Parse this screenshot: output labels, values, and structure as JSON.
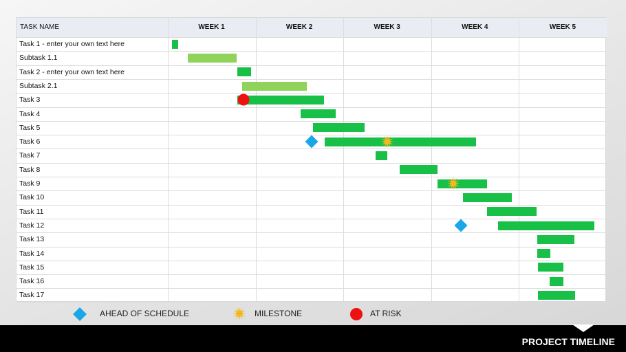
{
  "header": {
    "task_column": "TASK NAME",
    "weeks": [
      "WEEK 1",
      "WEEK 2",
      "WEEK 3",
      "WEEK 4",
      "WEEK 5"
    ]
  },
  "colors": {
    "task_bar": "#18c048",
    "subtask_bar": "#8fd35a",
    "ahead": "#1aa7e8",
    "milestone": "#f3b81c",
    "at_risk": "#ee1111"
  },
  "chart_data": {
    "type": "gantt",
    "x_axis": {
      "unit": "week",
      "range": [
        0,
        5
      ],
      "ticks": [
        "WEEK 1",
        "WEEK 2",
        "WEEK 3",
        "WEEK 4",
        "WEEK 5"
      ]
    },
    "grid": true,
    "legend_placement": "bottom",
    "tasks": [
      {
        "name": "Task 1 - enter your own text here",
        "start": 0.05,
        "end": 0.12,
        "type": "task"
      },
      {
        "name": "Subtask 1.1",
        "start": 0.23,
        "end": 0.78,
        "type": "subtask"
      },
      {
        "name": "Task 2 - enter your own text here",
        "start": 0.79,
        "end": 0.95,
        "type": "task"
      },
      {
        "name": "Subtask 2.1",
        "start": 0.85,
        "end": 1.58,
        "type": "subtask"
      },
      {
        "name": "Task 3",
        "start": 0.79,
        "end": 1.78,
        "type": "task",
        "marker": {
          "type": "at_risk",
          "at": 0.86
        }
      },
      {
        "name": "Task 4",
        "start": 1.51,
        "end": 1.91,
        "type": "task"
      },
      {
        "name": "Task 5",
        "start": 1.65,
        "end": 2.24,
        "type": "task"
      },
      {
        "name": "Task 6",
        "start": 1.79,
        "end": 3.51,
        "type": "task",
        "marker": {
          "type": "ahead",
          "at": 1.64
        },
        "milestone": 2.5
      },
      {
        "name": "Task 7",
        "start": 2.37,
        "end": 2.5,
        "type": "task"
      },
      {
        "name": "Task 8",
        "start": 2.64,
        "end": 3.07,
        "type": "task"
      },
      {
        "name": "Task 9",
        "start": 3.07,
        "end": 3.64,
        "type": "task",
        "milestone": 3.25
      },
      {
        "name": "Task 10",
        "start": 3.36,
        "end": 3.92,
        "type": "task"
      },
      {
        "name": "Task 11",
        "start": 3.64,
        "end": 4.2,
        "type": "task"
      },
      {
        "name": "Task 12",
        "start": 3.76,
        "end": 4.86,
        "type": "task",
        "marker": {
          "type": "ahead",
          "at": 3.34
        }
      },
      {
        "name": "Task 13",
        "start": 4.21,
        "end": 4.63,
        "type": "task"
      },
      {
        "name": "Task 14",
        "start": 4.21,
        "end": 4.36,
        "type": "task"
      },
      {
        "name": "Task 15",
        "start": 4.22,
        "end": 4.51,
        "type": "task"
      },
      {
        "name": "Task 16",
        "start": 4.35,
        "end": 4.51,
        "type": "task"
      },
      {
        "name": "Task 17",
        "start": 4.22,
        "end": 4.64,
        "type": "task"
      }
    ]
  },
  "legend": {
    "ahead": "AHEAD OF SCHEDULE",
    "milestone": "MILESTONE",
    "at_risk": "AT RISK"
  },
  "footer": {
    "title": "PROJECT TIMELINE"
  }
}
